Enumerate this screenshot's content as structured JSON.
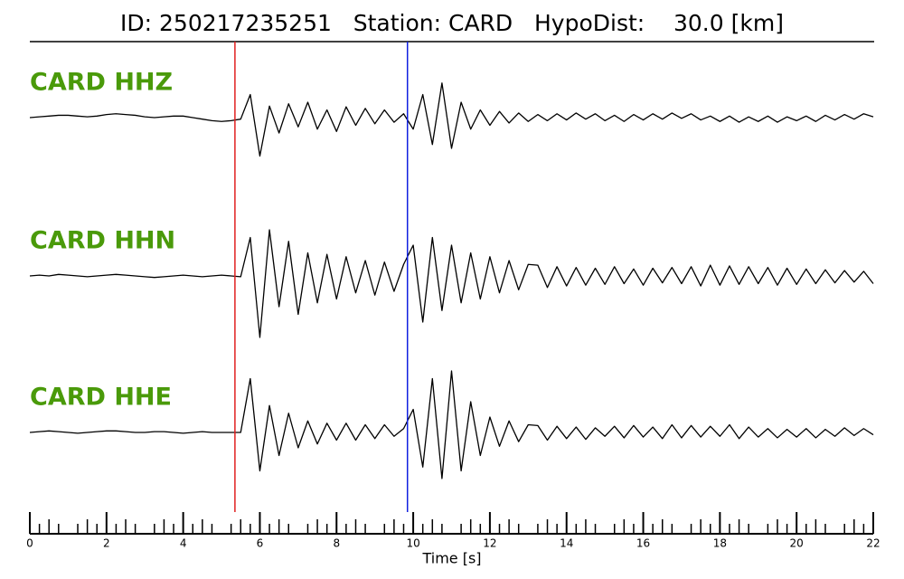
{
  "chart_data": {
    "type": "line",
    "title": "ID: 250217235251   Station: CARD   HypoDist:    30.0 [km]",
    "xlabel": "Time [s]",
    "xlim": [
      0,
      22
    ],
    "xticks": [
      0,
      2,
      4,
      6,
      8,
      10,
      12,
      14,
      16,
      18,
      20,
      22
    ],
    "xminor_step": 0.25,
    "ylim": [
      -1,
      1
    ],
    "vlines": [
      {
        "x": 5.35,
        "color": "#e02020"
      },
      {
        "x": 9.85,
        "color": "#1020e0"
      }
    ],
    "label_color": "#4a9a0a",
    "x": [
      0,
      0.25,
      0.5,
      0.75,
      1,
      1.25,
      1.5,
      1.75,
      2,
      2.25,
      2.5,
      2.75,
      3,
      3.25,
      3.5,
      3.75,
      4,
      4.25,
      4.5,
      4.75,
      5,
      5.25,
      5.5,
      5.75,
      6,
      6.25,
      6.5,
      6.75,
      7,
      7.25,
      7.5,
      7.75,
      8,
      8.25,
      8.5,
      8.75,
      9,
      9.25,
      9.5,
      9.75,
      10,
      10.25,
      10.5,
      10.75,
      11,
      11.25,
      11.5,
      11.75,
      12,
      12.25,
      12.5,
      12.75,
      13,
      13.25,
      13.5,
      13.75,
      14,
      14.25,
      14.5,
      14.75,
      15,
      15.25,
      15.5,
      15.75,
      16,
      16.25,
      16.5,
      16.75,
      17,
      17.25,
      17.5,
      17.75,
      18,
      18.25,
      18.5,
      18.75,
      19,
      19.25,
      19.5,
      19.75,
      20,
      20.25,
      20.5,
      20.75,
      21,
      21.25,
      21.5,
      21.75,
      22
    ],
    "series": [
      {
        "name": "CARD HHZ",
        "color": "#000000",
        "values": [
          0,
          0.01,
          0.02,
          0.03,
          0.03,
          0.02,
          0.01,
          0.02,
          0.04,
          0.05,
          0.04,
          0.03,
          0.01,
          0,
          0.01,
          0.02,
          0.02,
          0,
          -0.02,
          -0.04,
          -0.05,
          -0.04,
          -0.02,
          0.3,
          -0.5,
          0.15,
          -0.2,
          0.18,
          -0.12,
          0.2,
          -0.15,
          0.1,
          -0.18,
          0.14,
          -0.1,
          0.12,
          -0.08,
          0.1,
          -0.06,
          0.05,
          -0.15,
          0.3,
          -0.35,
          0.45,
          -0.4,
          0.2,
          -0.15,
          0.1,
          -0.1,
          0.08,
          -0.07,
          0.06,
          -0.05,
          0.04,
          -0.04,
          0.05,
          -0.03,
          0.06,
          -0.02,
          0.05,
          -0.04,
          0.03,
          -0.05,
          0.04,
          -0.03,
          0.05,
          -0.02,
          0.06,
          -0.01,
          0.05,
          -0.03,
          0.02,
          -0.05,
          0.02,
          -0.06,
          0.01,
          -0.05,
          0.02,
          -0.06,
          0.01,
          -0.04,
          0.02,
          -0.05,
          0.03,
          -0.03,
          0.04,
          -0.02,
          0.05,
          0.01
        ]
      },
      {
        "name": "CARD HHN",
        "color": "#000000",
        "values": [
          0,
          0.01,
          0,
          0.02,
          0.01,
          0,
          -0.01,
          0,
          0.01,
          0.02,
          0.01,
          0,
          -0.01,
          -0.02,
          -0.01,
          0,
          0.01,
          0,
          -0.01,
          0,
          0.01,
          0,
          -0.01,
          0.5,
          -0.8,
          0.6,
          -0.4,
          0.45,
          -0.5,
          0.3,
          -0.35,
          0.28,
          -0.3,
          0.25,
          -0.22,
          0.2,
          -0.25,
          0.18,
          -0.2,
          0.15,
          0.4,
          -0.6,
          0.5,
          -0.45,
          0.4,
          -0.35,
          0.3,
          -0.3,
          0.25,
          -0.22,
          0.2,
          -0.18,
          0.15,
          0.14,
          -0.15,
          0.12,
          -0.13,
          0.11,
          -0.12,
          0.1,
          -0.11,
          0.12,
          -0.1,
          0.09,
          -0.12,
          0.1,
          -0.09,
          0.11,
          -0.1,
          0.12,
          -0.13,
          0.14,
          -0.12,
          0.13,
          -0.11,
          0.12,
          -0.1,
          0.11,
          -0.12,
          0.1,
          -0.11,
          0.09,
          -0.1,
          0.08,
          -0.09,
          0.07,
          -0.08,
          0.06,
          -0.1
        ]
      },
      {
        "name": "CARD HHE",
        "color": "#000000",
        "values": [
          0,
          0.01,
          0.02,
          0.01,
          0,
          -0.01,
          0,
          0.01,
          0.02,
          0.02,
          0.01,
          0,
          0,
          0.01,
          0.01,
          0,
          -0.01,
          0,
          0.01,
          0,
          0,
          0,
          0,
          0.7,
          -0.5,
          0.35,
          -0.3,
          0.25,
          -0.2,
          0.15,
          -0.15,
          0.12,
          -0.1,
          0.12,
          -0.1,
          0.1,
          -0.08,
          0.1,
          -0.05,
          0.05,
          0.3,
          -0.45,
          0.7,
          -0.6,
          0.8,
          -0.5,
          0.4,
          -0.3,
          0.2,
          -0.18,
          0.15,
          -0.12,
          0.1,
          0.09,
          -0.1,
          0.08,
          -0.08,
          0.07,
          -0.09,
          0.06,
          -0.05,
          0.08,
          -0.07,
          0.09,
          -0.06,
          0.07,
          -0.08,
          0.1,
          -0.07,
          0.09,
          -0.06,
          0.08,
          -0.05,
          0.1,
          -0.08,
          0.07,
          -0.06,
          0.05,
          -0.07,
          0.04,
          -0.06,
          0.05,
          -0.07,
          0.04,
          -0.05,
          0.06,
          -0.04,
          0.05,
          -0.03
        ]
      }
    ]
  }
}
